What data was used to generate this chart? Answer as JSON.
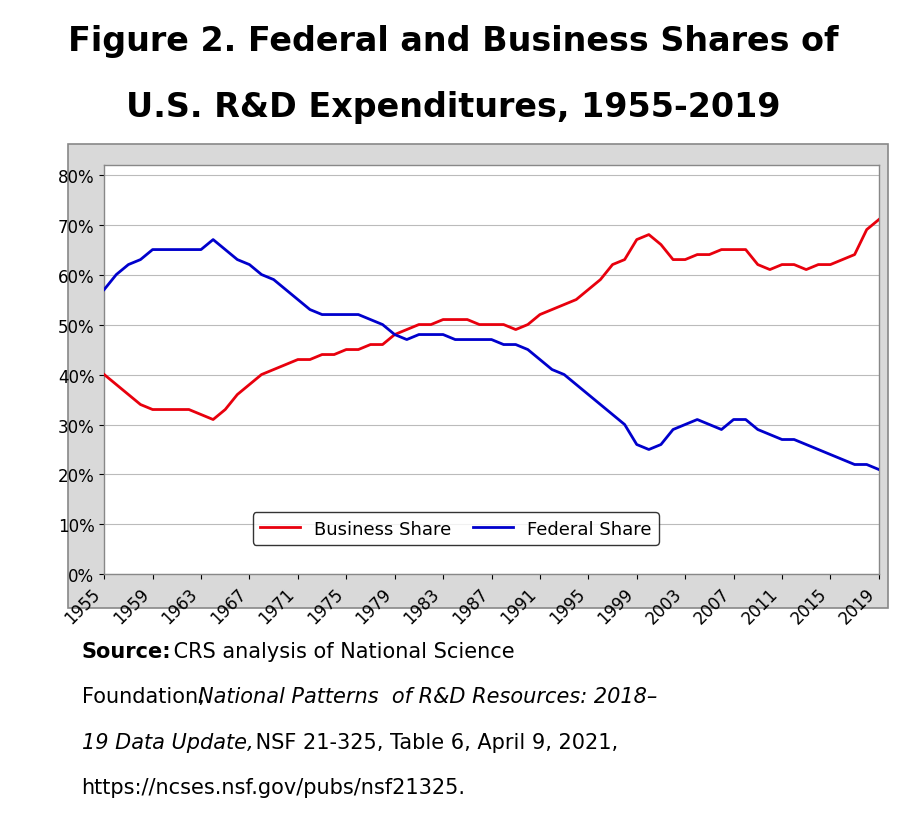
{
  "title_line1": "Figure 2. Federal and Business Shares of",
  "title_line2": "U.S. R&D Expenditures, 1955-2019",
  "years": [
    1955,
    1956,
    1957,
    1958,
    1959,
    1960,
    1961,
    1962,
    1963,
    1964,
    1965,
    1966,
    1967,
    1968,
    1969,
    1970,
    1971,
    1972,
    1973,
    1974,
    1975,
    1976,
    1977,
    1978,
    1979,
    1980,
    1981,
    1982,
    1983,
    1984,
    1985,
    1986,
    1987,
    1988,
    1989,
    1990,
    1991,
    1992,
    1993,
    1994,
    1995,
    1996,
    1997,
    1998,
    1999,
    2000,
    2001,
    2002,
    2003,
    2004,
    2005,
    2006,
    2007,
    2008,
    2009,
    2010,
    2011,
    2012,
    2013,
    2014,
    2015,
    2016,
    2017,
    2018,
    2019
  ],
  "business_share": [
    40,
    38,
    36,
    34,
    33,
    33,
    33,
    33,
    32,
    31,
    33,
    36,
    38,
    40,
    41,
    42,
    43,
    43,
    44,
    44,
    45,
    45,
    46,
    46,
    48,
    49,
    50,
    50,
    51,
    51,
    51,
    50,
    50,
    50,
    49,
    50,
    52,
    53,
    54,
    55,
    57,
    59,
    62,
    63,
    67,
    68,
    66,
    63,
    63,
    64,
    64,
    65,
    65,
    65,
    62,
    61,
    62,
    62,
    61,
    62,
    62,
    63,
    64,
    69,
    71
  ],
  "federal_share": [
    57,
    60,
    62,
    63,
    65,
    65,
    65,
    65,
    65,
    67,
    65,
    63,
    62,
    60,
    59,
    57,
    55,
    53,
    52,
    52,
    52,
    52,
    51,
    50,
    48,
    47,
    48,
    48,
    48,
    47,
    47,
    47,
    47,
    46,
    46,
    45,
    43,
    41,
    40,
    38,
    36,
    34,
    32,
    30,
    26,
    25,
    26,
    29,
    30,
    31,
    30,
    29,
    31,
    31,
    29,
    28,
    27,
    27,
    26,
    25,
    24,
    23,
    22,
    22,
    21
  ],
  "business_color": "#e8000d",
  "federal_color": "#0000cc",
  "chart_bg_color": "#d9d9d9",
  "plot_bg_color": "#ffffff",
  "yticks": [
    0,
    10,
    20,
    30,
    40,
    50,
    60,
    70,
    80
  ],
  "ylim": [
    0,
    82
  ],
  "legend_business": "Business Share",
  "legend_federal": "Federal Share",
  "title_fontsize": 24,
  "tick_fontsize": 12,
  "legend_fontsize": 13,
  "source_fontsize": 15,
  "xtick_start": 1955,
  "xtick_end": 2020,
  "xtick_step": 4
}
